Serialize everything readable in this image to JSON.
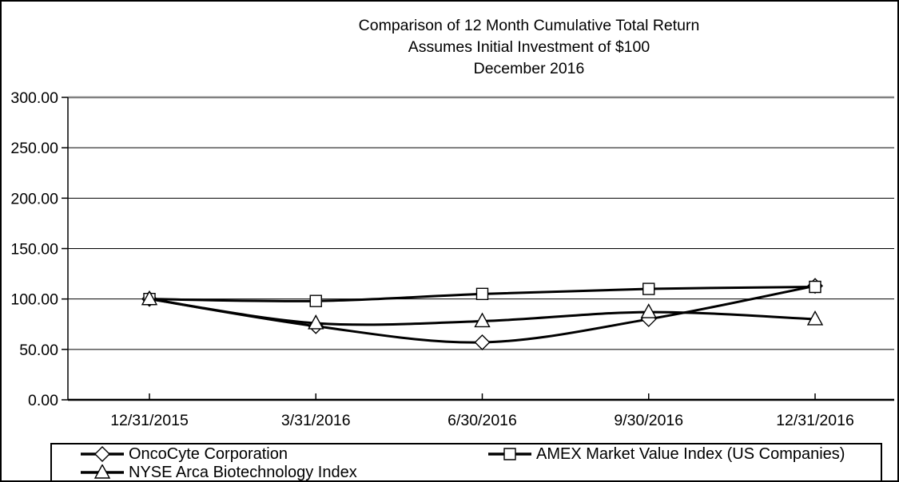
{
  "chart_data": {
    "type": "line",
    "title": "Comparison of 12 Month Cumulative Total Return",
    "subtitle": "Assumes Initial Investment of $100",
    "subtitle2": "December 2016",
    "categories": [
      "12/31/2015",
      "3/31/2016",
      "6/30/2016",
      "9/30/2016",
      "12/31/2016"
    ],
    "series": [
      {
        "name": "OncoCyte Corporation",
        "marker": "diamond",
        "values": [
          100,
          73,
          57,
          80,
          113
        ]
      },
      {
        "name": "AMEX Market Value Index (US Companies)",
        "marker": "square",
        "values": [
          100,
          98,
          105,
          110,
          112
        ]
      },
      {
        "name": "NYSE Arca Biotechnology Index",
        "marker": "triangle",
        "values": [
          100,
          76,
          78,
          87,
          80
        ]
      }
    ],
    "y_ticks": [
      "300.00",
      "250.00",
      "200.00",
      "150.00",
      "100.00",
      "50.00",
      "0.00"
    ],
    "ylim": [
      0,
      300
    ],
    "y_tick_step": 50,
    "grid": true,
    "legend_position": "bottom",
    "line_color": "#000000",
    "marker_fill": "#ffffff",
    "top_gridline_color": "#808080",
    "background": "#ffffff"
  }
}
